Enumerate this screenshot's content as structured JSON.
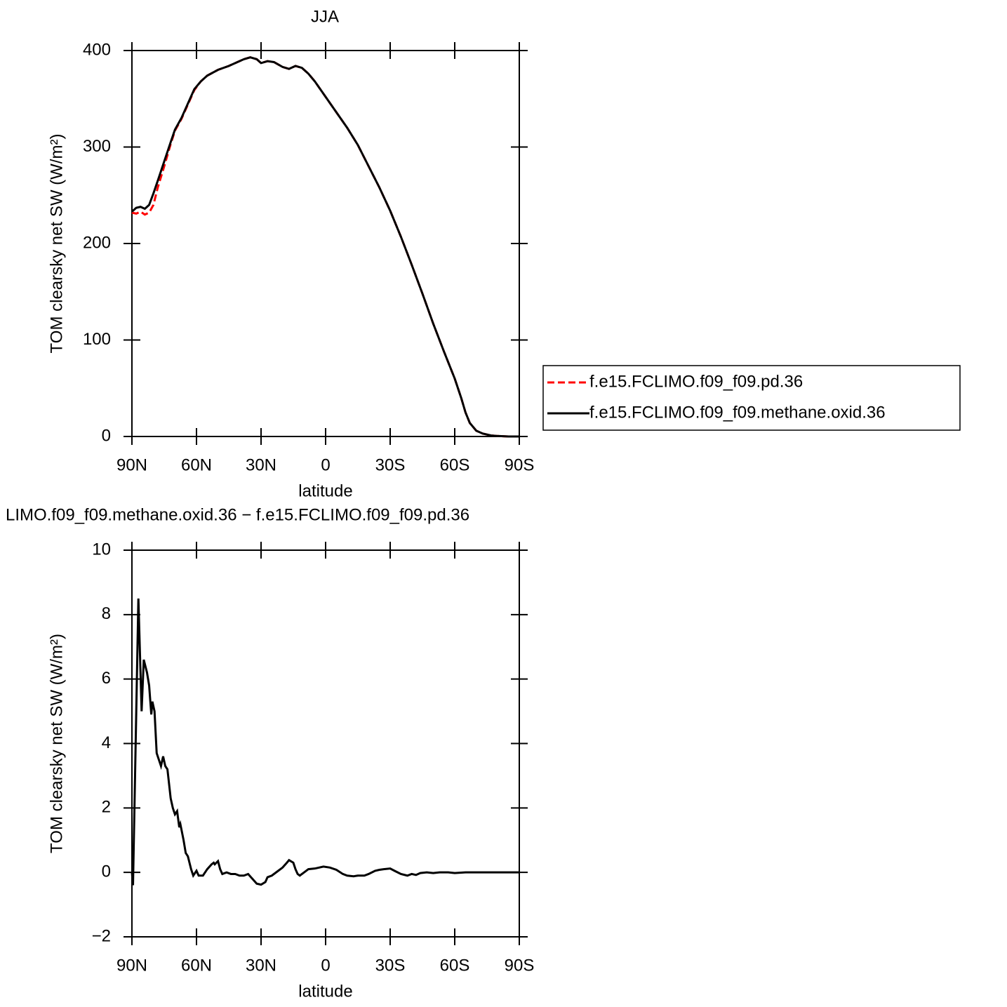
{
  "chart_data": [
    {
      "type": "line",
      "title": "JJA",
      "xlabel": "latitude",
      "ylabel": "TOM clearsky net SW (W/m²)",
      "xlim": [
        90,
        -90
      ],
      "ylim": [
        0,
        400
      ],
      "xticks": [
        {
          "value": 90,
          "label": "90N"
        },
        {
          "value": 60,
          "label": "60N"
        },
        {
          "value": 30,
          "label": "30N"
        },
        0,
        {
          "value": -30,
          "label": "30S"
        },
        {
          "value": -60,
          "label": "60S"
        },
        {
          "value": -90,
          "label": "90S"
        }
      ],
      "yticks": [
        0,
        100,
        200,
        300,
        400
      ],
      "legend": "right",
      "x": [
        90,
        88,
        86,
        84,
        82,
        80,
        78,
        75,
        72,
        70,
        67,
        64,
        61,
        58,
        55,
        50,
        45,
        42,
        38,
        35,
        32,
        30,
        27,
        24,
        20,
        17,
        14,
        11,
        8,
        5,
        0,
        -5,
        -10,
        -15,
        -20,
        -25,
        -30,
        -35,
        -40,
        -45,
        -50,
        -55,
        -60,
        -63,
        -65,
        -67,
        -70,
        -73,
        -77,
        -80,
        -85,
        -90
      ],
      "series": [
        {
          "name": "f.e15.FCLIMO.f09_f09.pd.36",
          "color": "#ff0000",
          "line_style": "dashed",
          "values": [
            232,
            231,
            233,
            230,
            232,
            240,
            258,
            280,
            303,
            317,
            329,
            344,
            359,
            368,
            374,
            380,
            384,
            387,
            391,
            393,
            391,
            387,
            389,
            388,
            383,
            381,
            384,
            382,
            376,
            368,
            352,
            336,
            320,
            302,
            280,
            258,
            234,
            207,
            178,
            148,
            117,
            88,
            60,
            40,
            25,
            14,
            6,
            3,
            1,
            0.5,
            0,
            0
          ]
        },
        {
          "name": "f.e15.FCLIMO.f09_f09.methane.oxid.36",
          "color": "#000000",
          "line_style": "solid",
          "values": [
            233,
            237,
            238,
            236,
            240,
            252,
            265,
            285,
            305,
            318,
            330,
            345,
            360,
            368,
            374,
            380,
            384,
            387,
            391,
            393,
            391,
            387,
            389,
            388,
            383,
            381,
            384,
            382,
            376,
            368,
            352,
            336,
            320,
            302,
            280,
            258,
            234,
            207,
            178,
            148,
            117,
            88,
            60,
            40,
            25,
            14,
            6,
            3,
            1,
            0.5,
            0,
            0
          ]
        }
      ]
    },
    {
      "type": "line",
      "title": "LIMO.f09_f09.methane.oxid.36 − f.e15.FCLIMO.f09_f09.pd.36",
      "xlabel": "latitude",
      "ylabel": "TOM clearsky net SW (W/m²)",
      "xlim": [
        90,
        -90
      ],
      "ylim": [
        -2,
        10
      ],
      "xticks": [
        {
          "value": 90,
          "label": "90N"
        },
        {
          "value": 60,
          "label": "60N"
        },
        {
          "value": 30,
          "label": "30N"
        },
        0,
        {
          "value": -30,
          "label": "30S"
        },
        {
          "value": -60,
          "label": "60S"
        },
        {
          "value": -90,
          "label": "90S"
        }
      ],
      "yticks": [
        {
          "value": -2,
          "label": "−2"
        },
        0,
        2,
        4,
        6,
        8,
        10
      ],
      "x": [
        90,
        89.5,
        87,
        85.5,
        84.5,
        83,
        82,
        81,
        80.5,
        79.5,
        78.5,
        77.5,
        76.5,
        75.5,
        74.5,
        73.5,
        72,
        71,
        70,
        69,
        68,
        67.5,
        66,
        65,
        64,
        62.5,
        61.5,
        60,
        59,
        57,
        55,
        53,
        52,
        51.5,
        50,
        49,
        48,
        46,
        44,
        42,
        40,
        38,
        36,
        34,
        32,
        30,
        28,
        27,
        25,
        22,
        20,
        18,
        17,
        15,
        14,
        13,
        12,
        10,
        8,
        5,
        1,
        -2,
        -5,
        -8,
        -10,
        -13,
        -15,
        -18,
        -20,
        -23,
        -25,
        -27,
        -30,
        -32,
        -35,
        -38,
        -40,
        -42,
        -44,
        -47,
        -50,
        -53,
        -57,
        -60,
        -65,
        -70,
        -80,
        -90
      ],
      "series": [
        {
          "color": "#000000",
          "line_style": "solid",
          "values": [
            0,
            -0.4,
            8.5,
            5,
            6.6,
            6.2,
            5.8,
            4.9,
            5.3,
            5.0,
            3.7,
            3.5,
            3.3,
            3.6,
            3.3,
            3.2,
            2.3,
            2.0,
            1.8,
            1.9,
            1.4,
            1.5,
            1.0,
            0.6,
            0.5,
            0.1,
            -0.1,
            0.05,
            -0.1,
            -0.1,
            0.1,
            0.25,
            0.3,
            0.25,
            0.35,
            0.1,
            -0.05,
            0,
            -0.05,
            -0.05,
            -0.1,
            -0.1,
            -0.05,
            -0.2,
            -0.35,
            -0.38,
            -0.3,
            -0.15,
            -0.1,
            0.05,
            0.15,
            0.3,
            0.38,
            0.3,
            0.1,
            -0.05,
            -0.1,
            0,
            0.1,
            0.12,
            0.18,
            0.15,
            0.08,
            -0.05,
            -0.1,
            -0.12,
            -0.1,
            -0.1,
            -0.05,
            0.05,
            0.08,
            0.1,
            0.12,
            0.05,
            -0.05,
            -0.1,
            -0.05,
            -0.08,
            -0.02,
            0,
            -0.02,
            0,
            0,
            -0.02,
            0,
            0,
            0,
            0
          ]
        }
      ]
    }
  ]
}
